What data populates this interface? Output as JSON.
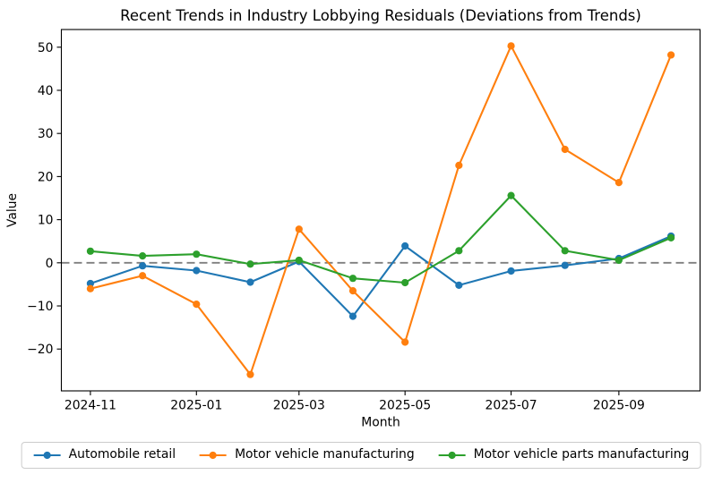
{
  "chart_data": {
    "type": "line",
    "title": "Recent Trends in Industry Lobbying Residuals (Deviations from Trends)",
    "xlabel": "Month",
    "ylabel": "Value",
    "x": [
      "2024-11",
      "2024-12",
      "2025-01",
      "2025-02",
      "2025-03",
      "2025-04",
      "2025-05",
      "2025-06",
      "2025-07",
      "2025-08",
      "2025-09",
      "2025-10"
    ],
    "series": [
      {
        "name": "Automobile retail",
        "color": "#1f77b4",
        "values": [
          -4.8,
          -0.7,
          -1.8,
          -4.5,
          0.3,
          -12.4,
          3.9,
          -5.2,
          -1.9,
          -0.6,
          1.0,
          6.2
        ]
      },
      {
        "name": "Motor vehicle manufacturing",
        "color": "#ff7f0e",
        "values": [
          -6.0,
          -3.0,
          -9.6,
          -25.9,
          7.8,
          -6.5,
          -18.4,
          22.6,
          50.3,
          26.3,
          18.6,
          48.2
        ]
      },
      {
        "name": "Motor vehicle parts manufacturing",
        "color": "#2ca02c",
        "values": [
          2.7,
          1.6,
          2.0,
          -0.3,
          0.6,
          -3.6,
          -4.6,
          2.8,
          15.6,
          2.8,
          0.6,
          5.8
        ]
      }
    ],
    "x_tick_labels": [
      "2024-11",
      "2025-01",
      "2025-03",
      "2025-05",
      "2025-07",
      "2025-09"
    ],
    "y_ticks": [
      -20,
      -10,
      0,
      10,
      20,
      30,
      40,
      50
    ],
    "ylim": [
      -29.7,
      54.1
    ],
    "x_margin_frac": 0.05,
    "zero_line": {
      "value": 0,
      "color": "#7f7f7f",
      "style": "dashed"
    },
    "grid": false,
    "legend_position": "bottom",
    "colors": {
      "axis": "#000000",
      "legend_border": "#cccccc",
      "background": "#ffffff"
    }
  }
}
